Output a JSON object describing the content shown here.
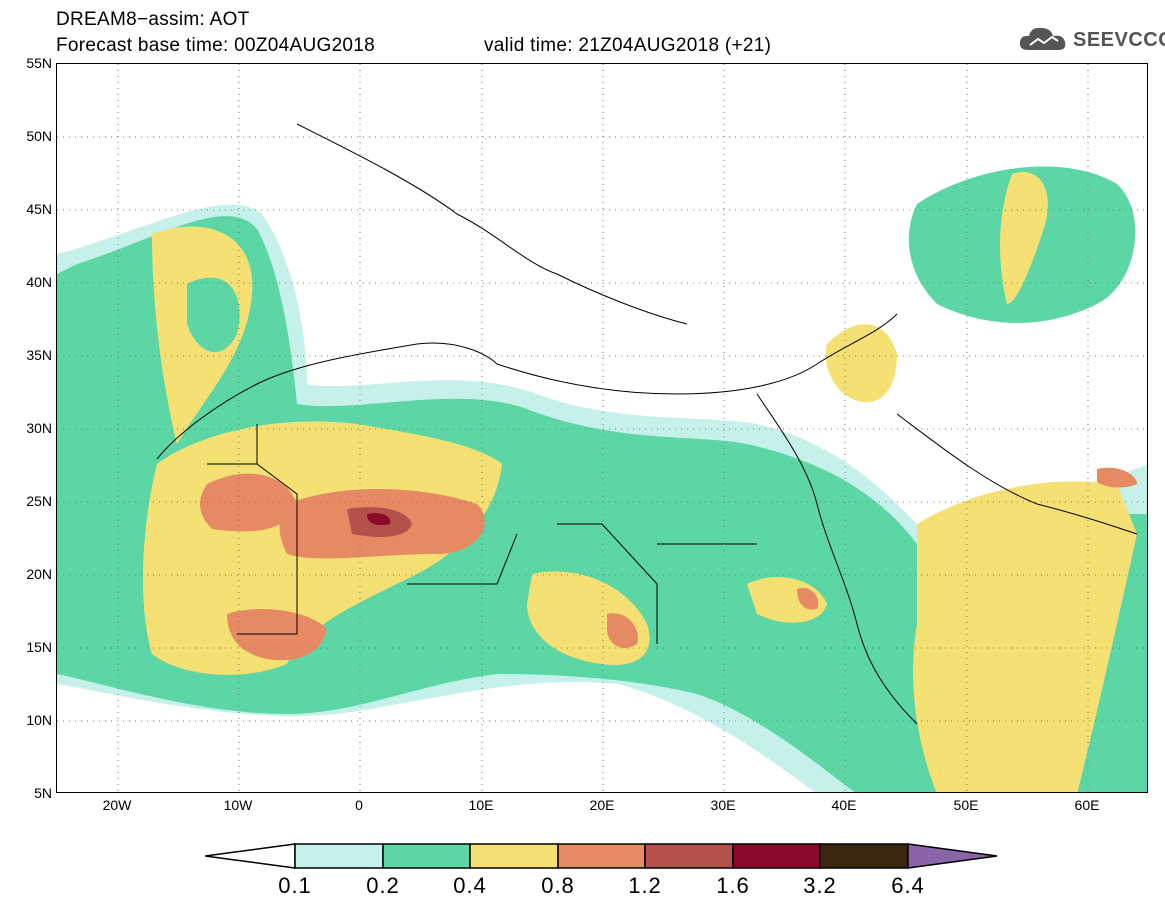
{
  "header": {
    "line1": "DREAM8−assim: AOT",
    "line2": "Forecast base time: 00Z04AUG2018",
    "line3": "valid time: 21Z04AUG2018 (+21)"
  },
  "logo": {
    "text": "SEEVCCC",
    "icon": "cloud-icon"
  },
  "map": {
    "projection": "lat-lon",
    "lon_range": [
      "25W",
      "65E"
    ],
    "lat_range": [
      "5N",
      "55N"
    ],
    "lat_labels": [
      "55N",
      "50N",
      "45N",
      "40N",
      "35N",
      "30N",
      "25N",
      "20N",
      "15N",
      "10N",
      "5N"
    ],
    "lon_labels": [
      "20W",
      "10W",
      "0",
      "10E",
      "20E",
      "30E",
      "40E",
      "50E",
      "60E"
    ],
    "gridlines": "dotted"
  },
  "colorbar": {
    "labels": [
      "0.1",
      "0.2",
      "0.4",
      "0.8",
      "1.2",
      "1.6",
      "3.2",
      "6.4"
    ],
    "colors": [
      "#c6f0ea",
      "#5cd6a5",
      "#f5e173",
      "#e68a63",
      "#b2524a",
      "#8a0a2a",
      "#3d2610",
      "#8b64a8"
    ]
  }
}
